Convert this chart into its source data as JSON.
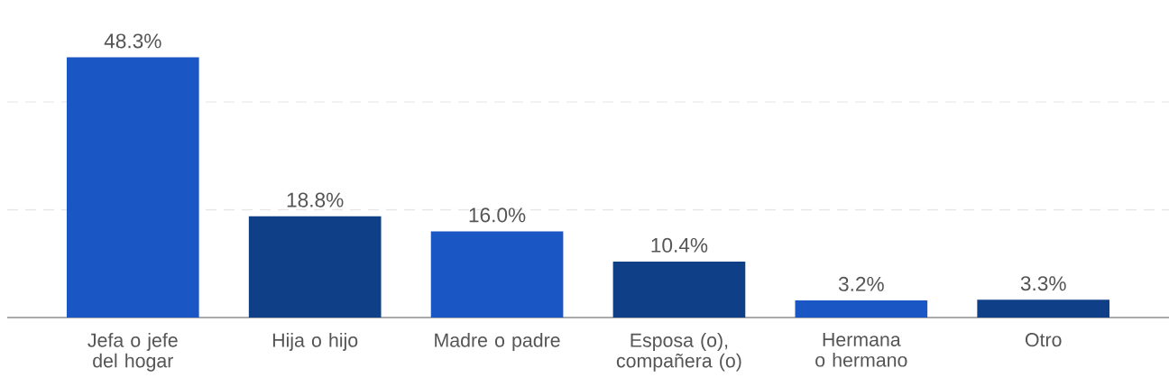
{
  "chart_data": {
    "type": "bar",
    "categories": [
      "Jefa o jefe del hogar",
      "Hija o hijo",
      "Madre o padre",
      "Esposa (o), compañera (o)",
      "Hermana o hermano",
      "Otro"
    ],
    "values": [
      48.3,
      18.8,
      16.0,
      10.4,
      3.2,
      3.3
    ],
    "value_labels": [
      "48.3%",
      "18.8%",
      "16.0%",
      "10.4%",
      "3.2%",
      "3.3%"
    ],
    "colors": [
      "#1a56c4",
      "#0f3f86",
      "#1a56c4",
      "#0f3f86",
      "#1a56c4",
      "#0f3f86"
    ],
    "ref_lines": [
      {
        "axis": "y",
        "value": 20,
        "color": "#e6e6e6",
        "line_style": "dashed"
      },
      {
        "axis": "y",
        "value": 40,
        "color": "#e6e6e6",
        "line_style": "dashed"
      }
    ],
    "tick_labels": "x"
  }
}
